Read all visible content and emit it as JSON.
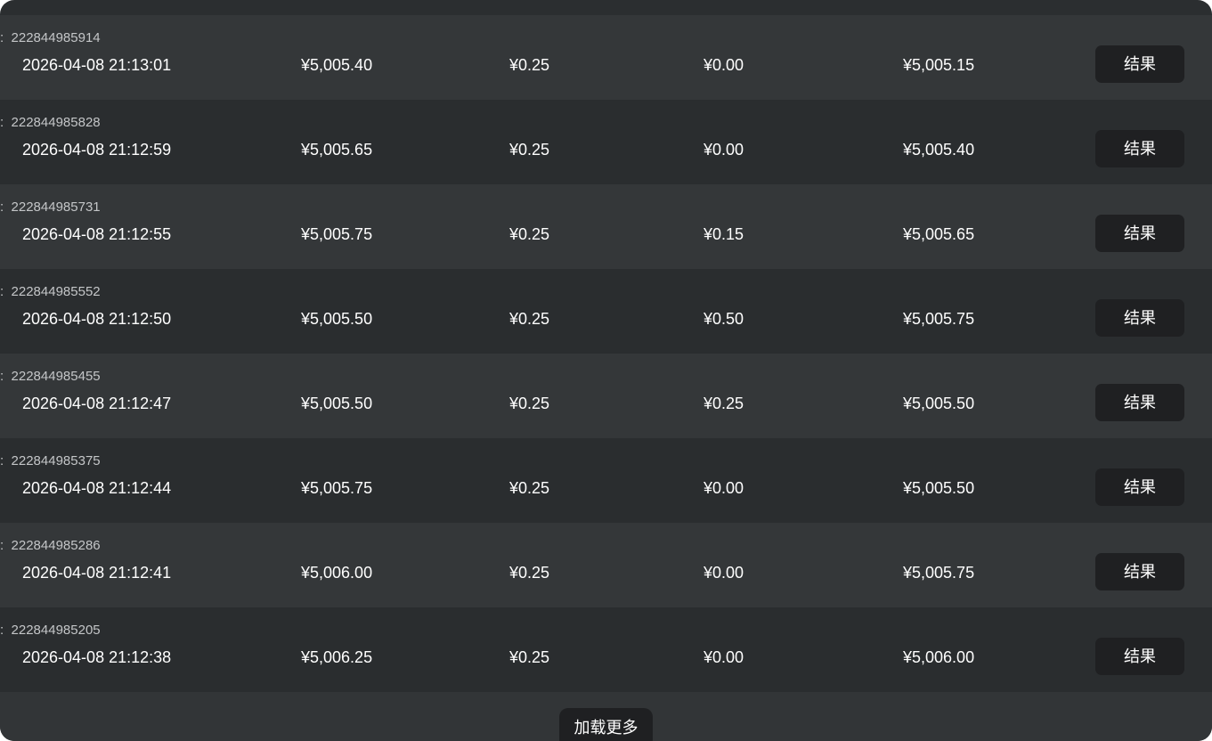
{
  "rows": [
    {
      "order_id": "222844985914",
      "time": "2026-04-08 21:13:01",
      "a": "¥5,005.40",
      "b": "¥0.25",
      "c": "¥0.00",
      "d": "¥5,005.15",
      "action": "结果"
    },
    {
      "order_id": "222844985828",
      "time": "2026-04-08 21:12:59",
      "a": "¥5,005.65",
      "b": "¥0.25",
      "c": "¥0.00",
      "d": "¥5,005.40",
      "action": "结果"
    },
    {
      "order_id": "222844985731",
      "time": "2026-04-08 21:12:55",
      "a": "¥5,005.75",
      "b": "¥0.25",
      "c": "¥0.15",
      "d": "¥5,005.65",
      "action": "结果"
    },
    {
      "order_id": "222844985552",
      "time": "2026-04-08 21:12:50",
      "a": "¥5,005.50",
      "b": "¥0.25",
      "c": "¥0.50",
      "d": "¥5,005.75",
      "action": "结果"
    },
    {
      "order_id": "222844985455",
      "time": "2026-04-08 21:12:47",
      "a": "¥5,005.50",
      "b": "¥0.25",
      "c": "¥0.25",
      "d": "¥5,005.50",
      "action": "结果"
    },
    {
      "order_id": "222844985375",
      "time": "2026-04-08 21:12:44",
      "a": "¥5,005.75",
      "b": "¥0.25",
      "c": "¥0.00",
      "d": "¥5,005.50",
      "action": "结果"
    },
    {
      "order_id": "222844985286",
      "time": "2026-04-08 21:12:41",
      "a": "¥5,006.00",
      "b": "¥0.25",
      "c": "¥0.00",
      "d": "¥5,005.75",
      "action": "结果"
    },
    {
      "order_id": "222844985205",
      "time": "2026-04-08 21:12:38",
      "a": "¥5,006.25",
      "b": "¥0.25",
      "c": "¥0.00",
      "d": "¥5,006.00",
      "action": "结果"
    }
  ],
  "order_prefix": ":",
  "load_more": "加载更多"
}
